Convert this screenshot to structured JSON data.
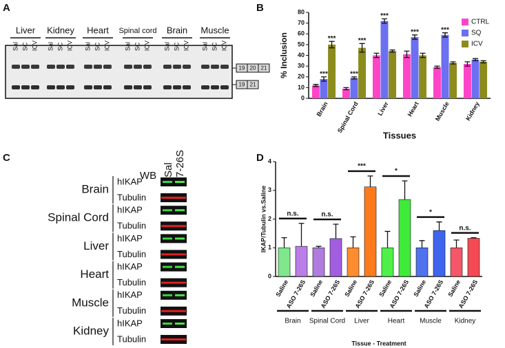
{
  "panel_a": {
    "label": "A",
    "tissues": [
      "Liver",
      "Kidney",
      "Heart",
      "Spinal cord",
      "Brain",
      "Muscle"
    ],
    "lanes": [
      "Sal",
      "SC",
      "ICV"
    ],
    "isoforms": [
      [
        "19",
        "20",
        "21"
      ],
      [
        "19",
        "21"
      ]
    ]
  },
  "chart_data": [
    {
      "type": "bar",
      "panel_label": "B",
      "y_label": "% Inclusion",
      "x_label": "Tissues",
      "categories": [
        "Brain",
        "Spinal Cord",
        "Liver",
        "Heart",
        "Muscle",
        "Kidney"
      ],
      "series": [
        {
          "name": "CTRL",
          "color": "#ff44c8",
          "values": [
            12,
            9,
            40,
            41,
            29,
            32
          ],
          "errors": [
            1,
            1,
            2,
            3,
            1,
            2
          ],
          "significance": [
            null,
            null,
            null,
            null,
            null,
            null
          ]
        },
        {
          "name": "SQ",
          "color": "#6b6ff0",
          "values": [
            18,
            19,
            72,
            57,
            59,
            36
          ],
          "errors": [
            2,
            1,
            2,
            2,
            2,
            1
          ],
          "significance": [
            "***",
            "***",
            "***",
            "***",
            "***",
            null
          ]
        },
        {
          "name": "ICV",
          "color": "#8c8c1e",
          "values": [
            50,
            47,
            44,
            40,
            33,
            34
          ],
          "errors": [
            3,
            4,
            1,
            2,
            1,
            1
          ],
          "significance": [
            "***",
            "***",
            null,
            null,
            null,
            null
          ]
        }
      ],
      "ylim": [
        0,
        80
      ],
      "yticks": [
        0,
        10,
        20,
        30,
        40,
        50,
        60,
        70,
        80
      ],
      "legend": "top-right"
    },
    {
      "type": "bar",
      "panel_label": "D",
      "y_label": "IKAP/Tubulin vs.Saline",
      "x_label": "Tissue - Treatment",
      "categories": [
        "Saline",
        "ASO 7-26S",
        "Saline",
        "ASO 7-26S",
        "Saline",
        "ASO 7-26S",
        "Saline",
        "ASO 7-26S",
        "Saline",
        "ASO 7-26S",
        "Saline",
        "ASO 7-26S"
      ],
      "values": [
        1.0,
        1.05,
        1.0,
        1.32,
        1.0,
        3.12,
        1.0,
        2.68,
        1.0,
        1.6,
        1.0,
        1.33
      ],
      "errors": [
        0.35,
        0.8,
        0.05,
        0.5,
        0.38,
        0.38,
        0.57,
        0.65,
        0.25,
        0.3,
        0.27,
        0.02
      ],
      "colors": [
        "#80e68c",
        "#b97fe6",
        "#b07ce0",
        "#a25ee0",
        "#ff8c2e",
        "#ff7a1a",
        "#4ff04a",
        "#3eea3a",
        "#4f72ee",
        "#3f64ee",
        "#f4566a",
        "#f44a55"
      ],
      "groups": [
        {
          "name": "Brain",
          "significance": "n.s."
        },
        {
          "name": "Spinal Cord",
          "significance": "n.s."
        },
        {
          "name": "Liver",
          "significance": "***"
        },
        {
          "name": "Heart",
          "significance": "*"
        },
        {
          "name": "Muscle",
          "significance": "*"
        },
        {
          "name": "Kidney",
          "significance": "n.s."
        }
      ],
      "ylim": [
        0,
        4
      ],
      "yticks": [
        0,
        1,
        2,
        3,
        4
      ]
    }
  ],
  "panel_c": {
    "label": "C",
    "method": "WB",
    "conditions": [
      "Sal",
      "7-26S"
    ],
    "tissues": [
      "Brain",
      "Spinal Cord",
      "Liver",
      "Heart",
      "Muscle",
      "Kidney"
    ],
    "proteins": [
      "hIKAP",
      "Tubulin"
    ]
  }
}
